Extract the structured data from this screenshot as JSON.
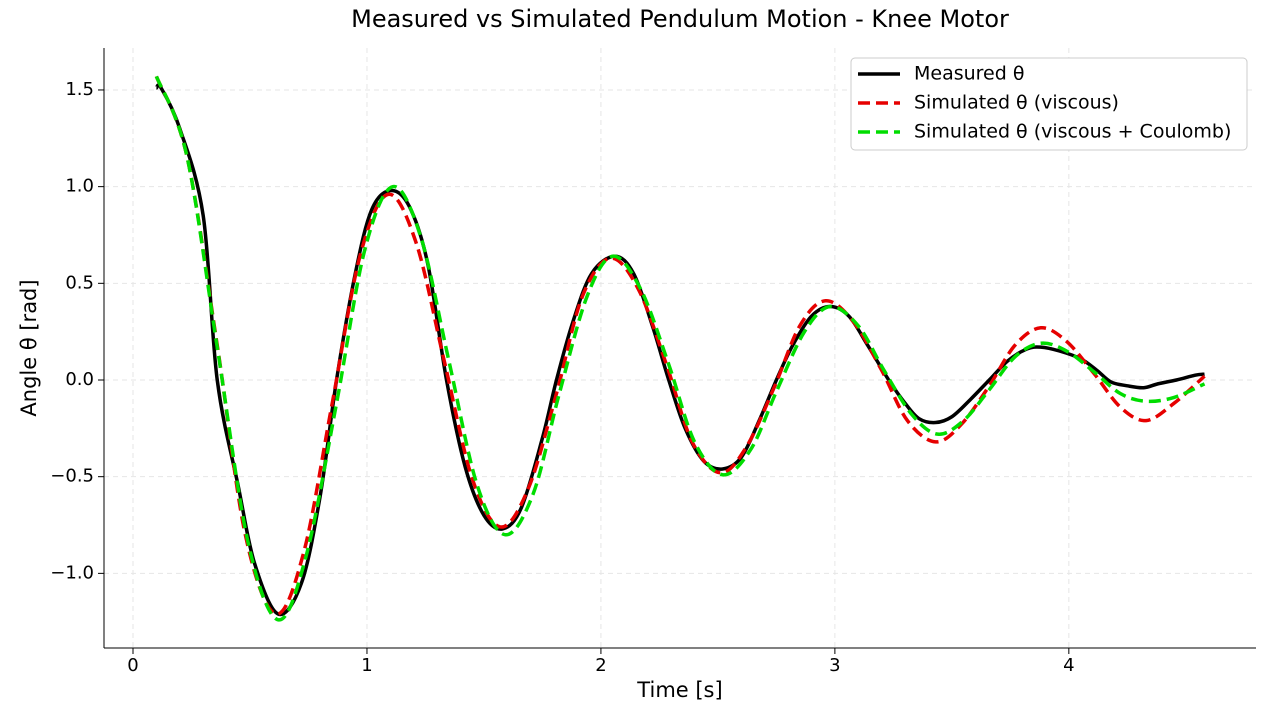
{
  "chart_data": {
    "type": "line",
    "title": "Measured vs Simulated Pendulum Motion - Knee Motor",
    "x_label": "Time [s]",
    "y_label": "Angle θ [rad]",
    "xlim": [
      -0.124,
      4.8
    ],
    "ylim": [
      -1.386,
      1.717
    ],
    "xticks": [
      0,
      1,
      2,
      3,
      4
    ],
    "yticks": [
      {
        "value": -1.0,
        "label": "−1.0"
      },
      {
        "value": -0.5,
        "label": "−0.5"
      },
      {
        "value": 0,
        "label": "0.0"
      },
      0.5,
      {
        "value": 1,
        "label": "1.0"
      },
      1.5
    ],
    "grid": true,
    "legend": "upper right",
    "series": [
      {
        "name": "Measured θ",
        "color": "#000000",
        "style": "solid",
        "x": [
          0.1,
          0.12,
          0.2,
          0.3,
          0.36,
          0.45,
          0.52,
          0.62,
          0.72,
          0.8,
          0.87,
          0.95,
          1.02,
          1.1,
          1.18,
          1.26,
          1.34,
          1.42,
          1.5,
          1.58,
          1.66,
          1.75,
          1.81,
          1.88,
          1.96,
          2.06,
          2.14,
          2.22,
          2.29,
          2.36,
          2.44,
          2.52,
          2.6,
          2.68,
          2.75,
          2.82,
          2.9,
          2.98,
          3.06,
          3.14,
          3.23,
          3.3,
          3.36,
          3.43,
          3.5,
          3.58,
          3.66,
          3.74,
          3.82,
          3.88,
          3.96,
          4.05,
          4.12,
          4.18,
          4.25,
          4.32,
          4.38,
          4.46,
          4.54,
          4.58
        ],
        "values": [
          1.51,
          1.51,
          1.3,
          0.85,
          0.0,
          -0.55,
          -0.95,
          -1.21,
          -1.05,
          -0.6,
          0.0,
          0.55,
          0.88,
          0.98,
          0.9,
          0.6,
          0.0,
          -0.45,
          -0.7,
          -0.77,
          -0.66,
          -0.3,
          0.0,
          0.3,
          0.55,
          0.64,
          0.55,
          0.28,
          0.0,
          -0.25,
          -0.42,
          -0.46,
          -0.4,
          -0.2,
          0.0,
          0.18,
          0.33,
          0.38,
          0.33,
          0.18,
          0.0,
          -0.12,
          -0.2,
          -0.22,
          -0.19,
          -0.1,
          0.0,
          0.1,
          0.16,
          0.17,
          0.15,
          0.11,
          0.05,
          -0.01,
          -0.03,
          -0.04,
          -0.02,
          0.0,
          0.025,
          0.03
        ]
      },
      {
        "name": "Simulated θ (viscous)",
        "color": "#e60000",
        "style": "dashed",
        "x": [
          0.1,
          0.23,
          0.36,
          0.48,
          0.61,
          0.73,
          0.85,
          0.97,
          1.09,
          1.21,
          1.33,
          1.45,
          1.57,
          1.69,
          1.81,
          1.92,
          2.04,
          2.16,
          2.28,
          2.39,
          2.51,
          2.62,
          2.74,
          2.85,
          2.96,
          3.08,
          3.2,
          3.31,
          3.43,
          3.54,
          3.66,
          3.77,
          3.88,
          3.99,
          4.11,
          4.22,
          4.33,
          4.45,
          4.58
        ],
        "values": [
          1.57,
          1.16,
          0.18,
          -0.8,
          -1.21,
          -0.89,
          -0.13,
          0.64,
          0.96,
          0.71,
          0.1,
          -0.51,
          -0.76,
          -0.56,
          -0.07,
          0.43,
          0.63,
          0.47,
          0.08,
          -0.32,
          -0.48,
          -0.35,
          -0.04,
          0.28,
          0.41,
          0.3,
          0.05,
          -0.21,
          -0.32,
          -0.23,
          -0.03,
          0.18,
          0.27,
          0.2,
          0.03,
          -0.14,
          -0.21,
          -0.12,
          0.02
        ]
      },
      {
        "name": "Simulated θ (viscous + Coulomb)",
        "color": "#00dd00",
        "style": "dashed",
        "x": [
          0.1,
          0.23,
          0.36,
          0.49,
          0.62,
          0.74,
          0.87,
          0.99,
          1.11,
          1.23,
          1.35,
          1.47,
          1.59,
          1.71,
          1.82,
          1.94,
          2.05,
          2.17,
          2.29,
          2.4,
          2.52,
          2.64,
          2.75,
          2.87,
          2.98,
          3.1,
          3.21,
          3.33,
          3.44,
          3.55,
          3.66,
          3.77,
          3.88,
          3.99,
          4.11,
          4.22,
          4.33,
          4.45,
          4.58
        ],
        "values": [
          1.57,
          1.16,
          0.17,
          -0.83,
          -1.24,
          -0.91,
          -0.12,
          0.67,
          1.0,
          0.74,
          0.1,
          -0.54,
          -0.8,
          -0.59,
          -0.08,
          0.43,
          0.64,
          0.47,
          0.08,
          -0.32,
          -0.49,
          -0.36,
          -0.06,
          0.25,
          0.38,
          0.28,
          0.05,
          -0.18,
          -0.28,
          -0.21,
          -0.05,
          0.12,
          0.19,
          0.15,
          0.04,
          -0.07,
          -0.11,
          -0.09,
          -0.02
        ]
      }
    ]
  }
}
